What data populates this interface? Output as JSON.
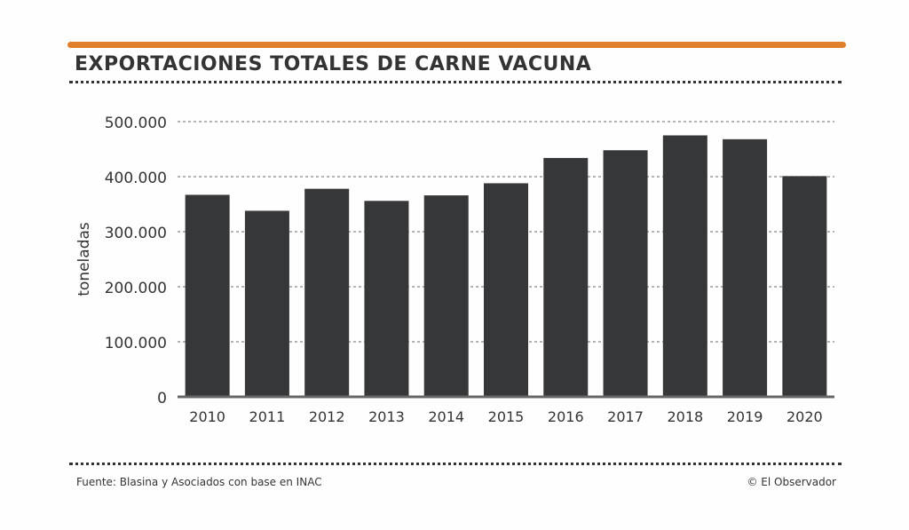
{
  "title": "EXPORTACIONES TOTALES DE CARNE VACUNA",
  "footer": {
    "source": "Fuente: Blasina y Asociados con base en INAC",
    "credit": "© El Observador"
  },
  "colors": {
    "accent": "#e0802c",
    "bar": "#363739"
  },
  "chart_data": {
    "type": "bar",
    "title": "EXPORTACIONES TOTALES DE CARNE VACUNA",
    "xlabel": "",
    "ylabel": "toneladas",
    "ylim": [
      0,
      500000
    ],
    "yticks": [
      0,
      100000,
      200000,
      300000,
      400000,
      500000
    ],
    "ytick_labels": [
      "0",
      "100.000",
      "200.000",
      "300.000",
      "400.000",
      "500.000"
    ],
    "grid": true,
    "categories": [
      "2010",
      "2011",
      "2012",
      "2013",
      "2014",
      "2015",
      "2016",
      "2017",
      "2018",
      "2019",
      "2020"
    ],
    "values": [
      367000,
      338000,
      378000,
      356000,
      366000,
      388000,
      434000,
      448000,
      475000,
      468000,
      401000
    ]
  }
}
